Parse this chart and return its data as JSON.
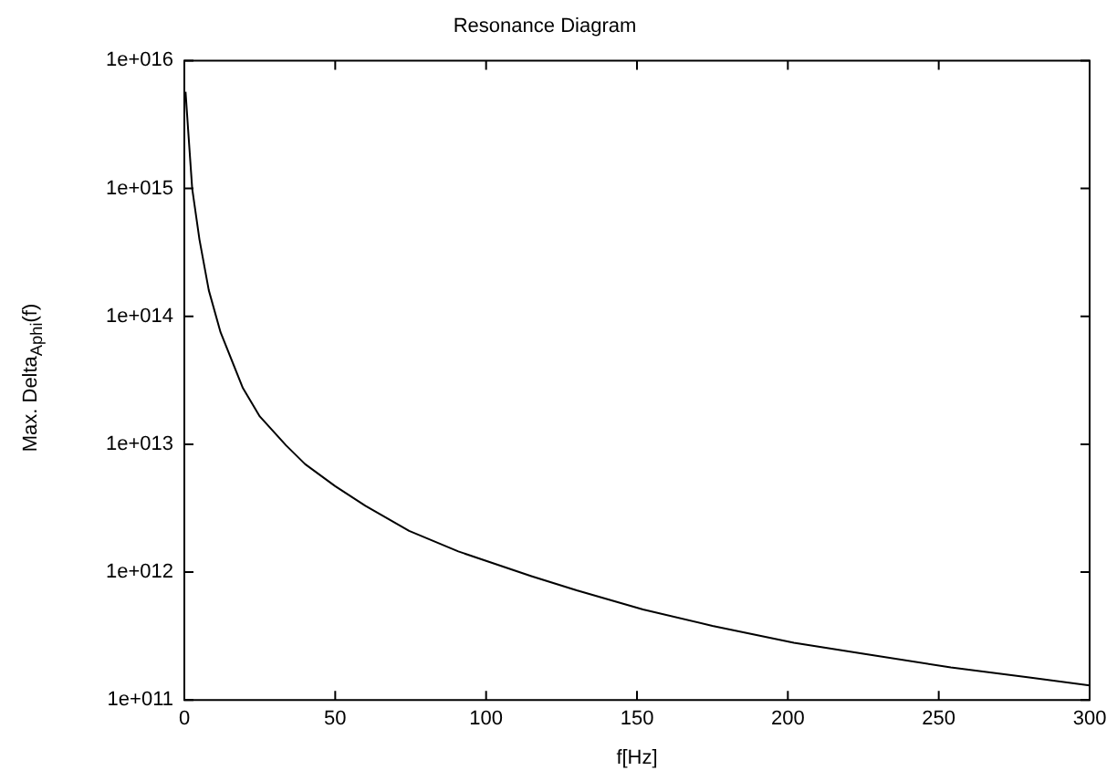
{
  "chart_data": {
    "type": "line",
    "title": "Resonance Diagram",
    "xlabel": "f[Hz]",
    "ylabel": "Max. Delta$_{Aphi}$(f)",
    "log": "y",
    "grid": false,
    "legend": false,
    "marker": "none",
    "line_style": "solid",
    "xlim": [
      0,
      300
    ],
    "xticks": [
      0,
      50,
      100,
      150,
      200,
      250,
      300
    ],
    "ylim": [
      100000000000.0,
      1e+16
    ],
    "yticks": [
      {
        "value": 100000000000.0,
        "label": "1e+011"
      },
      {
        "value": 1000000000000.0,
        "label": "1e+012"
      },
      {
        "value": 10000000000000.0,
        "label": "1e+013"
      },
      {
        "value": 100000000000000.0,
        "label": "1e+014"
      },
      {
        "value": 1000000000000000.0,
        "label": "1e+015"
      },
      {
        "value": 1e+16,
        "label": "1e+016"
      }
    ],
    "series": [
      {
        "color": "#000000",
        "x": [
          0.4,
          1.2,
          2.6,
          5,
          8.1,
          12,
          19.4,
          25,
          33.7,
          40,
          50,
          60,
          74.5,
          90.8,
          115,
          130,
          152,
          175,
          202,
          225,
          254,
          280,
          300
        ],
        "values": [
          5700000000000000.0,
          3000000000000000.0,
          1000000000000000.0,
          400000000000000.0,
          160000000000000.0,
          75000000000000.0,
          27500000000000.0,
          16500000000000.0,
          9800000000000.0,
          7000000000000.0,
          4700000000000.0,
          3300000000000.0,
          2100000000000.0,
          1450000000000.0,
          930000000000.0,
          720000000000.0,
          510000000000.0,
          380000000000.0,
          280000000000.0,
          230000000000.0,
          180000000000.0,
          150000000000.0,
          130000000000.0
        ]
      }
    ]
  }
}
